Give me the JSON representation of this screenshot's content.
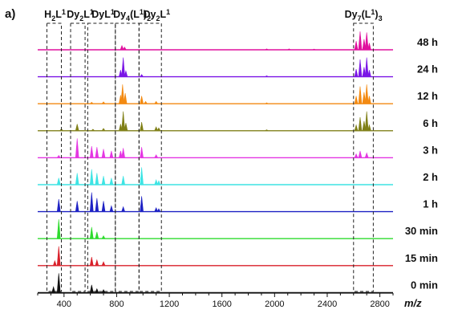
{
  "chart_data": {
    "type": "line",
    "panel_label": "a)",
    "xlabel": "m/z",
    "xlim": [
      200,
      2900
    ],
    "x_ticks": [
      400,
      800,
      1200,
      1600,
      2000,
      2400,
      2800
    ],
    "grid": false,
    "legend": "none",
    "regions": [
      {
        "label": "H2L1",
        "range": [
          270,
          380
        ]
      },
      {
        "label": "Dy2L1",
        "range": [
          450,
          560
        ]
      },
      {
        "label": "DyL1",
        "range": [
          580,
          790
        ]
      },
      {
        "label": "Dy4(L1)2",
        "range": [
          790,
          970
        ]
      },
      {
        "label": "Dy2L1",
        "range": [
          970,
          1140
        ]
      },
      {
        "label": "Dy7(L1)3",
        "range": [
          2600,
          2750
        ]
      }
    ],
    "series": [
      {
        "name": "48 h",
        "color": "#e0109e",
        "peaks": [
          [
            840,
            0.22
          ],
          [
            860,
            0.14
          ],
          [
            1940,
            0.05
          ],
          [
            2110,
            0.05
          ],
          [
            2300,
            0.04
          ],
          [
            2620,
            0.45
          ],
          [
            2650,
            0.95
          ],
          [
            2680,
            0.55
          ],
          [
            2700,
            0.9
          ],
          [
            2720,
            0.35
          ]
        ]
      },
      {
        "name": "24 h",
        "color": "#7b16e6",
        "peaks": [
          [
            830,
            0.35
          ],
          [
            850,
            1.0
          ],
          [
            870,
            0.3
          ],
          [
            990,
            0.12
          ],
          [
            1940,
            0.05
          ],
          [
            2620,
            0.4
          ],
          [
            2650,
            0.9
          ],
          [
            2680,
            0.5
          ],
          [
            2700,
            1.0
          ],
          [
            2720,
            0.35
          ]
        ]
      },
      {
        "name": "12 h",
        "color": "#f38a12",
        "peaks": [
          [
            610,
            0.08
          ],
          [
            700,
            0.1
          ],
          [
            830,
            0.45
          ],
          [
            845,
            1.0
          ],
          [
            865,
            0.55
          ],
          [
            990,
            0.4
          ],
          [
            1020,
            0.12
          ],
          [
            1100,
            0.12
          ],
          [
            1940,
            0.05
          ],
          [
            2620,
            0.4
          ],
          [
            2650,
            0.9
          ],
          [
            2680,
            0.6
          ],
          [
            2700,
            1.0
          ],
          [
            2720,
            0.4
          ]
        ]
      },
      {
        "name": "6 h",
        "color": "#808018",
        "peaks": [
          [
            380,
            0.1
          ],
          [
            500,
            0.35
          ],
          [
            620,
            0.08
          ],
          [
            700,
            0.12
          ],
          [
            830,
            0.35
          ],
          [
            850,
            1.0
          ],
          [
            870,
            0.4
          ],
          [
            990,
            0.45
          ],
          [
            1100,
            0.2
          ],
          [
            1120,
            0.15
          ],
          [
            1940,
            0.05
          ],
          [
            2620,
            0.3
          ],
          [
            2650,
            0.7
          ],
          [
            2680,
            0.5
          ],
          [
            2700,
            1.0
          ],
          [
            2720,
            0.3
          ]
        ]
      },
      {
        "name": "3 h",
        "color": "#e436e2",
        "peaks": [
          [
            360,
            0.12
          ],
          [
            500,
            1.0
          ],
          [
            610,
            0.6
          ],
          [
            650,
            0.55
          ],
          [
            700,
            0.45
          ],
          [
            760,
            0.35
          ],
          [
            830,
            0.35
          ],
          [
            850,
            0.5
          ],
          [
            990,
            0.55
          ],
          [
            1100,
            0.15
          ],
          [
            2620,
            0.2
          ],
          [
            2650,
            0.35
          ],
          [
            2700,
            0.25
          ]
        ]
      },
      {
        "name": "2 h",
        "color": "#3ee4e4",
        "peaks": [
          [
            360,
            0.35
          ],
          [
            500,
            0.6
          ],
          [
            610,
            0.8
          ],
          [
            650,
            0.6
          ],
          [
            700,
            0.45
          ],
          [
            760,
            0.35
          ],
          [
            850,
            0.45
          ],
          [
            990,
            0.9
          ],
          [
            1100,
            0.25
          ],
          [
            1120,
            0.2
          ]
        ]
      },
      {
        "name": "1 h",
        "color": "#1e22c4",
        "peaks": [
          [
            360,
            0.65
          ],
          [
            500,
            0.55
          ],
          [
            610,
            1.0
          ],
          [
            650,
            0.7
          ],
          [
            700,
            0.55
          ],
          [
            760,
            0.3
          ],
          [
            850,
            0.25
          ],
          [
            990,
            0.8
          ],
          [
            1100,
            0.2
          ],
          [
            1120,
            0.15
          ]
        ]
      },
      {
        "name": "30 min",
        "color": "#2edb2e",
        "peaks": [
          [
            360,
            1.0
          ],
          [
            610,
            0.6
          ],
          [
            650,
            0.35
          ],
          [
            700,
            0.15
          ]
        ]
      },
      {
        "name": "15 min",
        "color": "#d9202a",
        "peaks": [
          [
            330,
            0.25
          ],
          [
            360,
            1.0
          ],
          [
            610,
            0.45
          ],
          [
            650,
            0.3
          ],
          [
            700,
            0.2
          ]
        ]
      },
      {
        "name": "0 min",
        "color": "#111111",
        "peaks": [
          [
            320,
            0.3
          ],
          [
            360,
            1.0
          ],
          [
            610,
            0.4
          ],
          [
            650,
            0.2
          ],
          [
            700,
            0.15
          ]
        ]
      }
    ]
  }
}
